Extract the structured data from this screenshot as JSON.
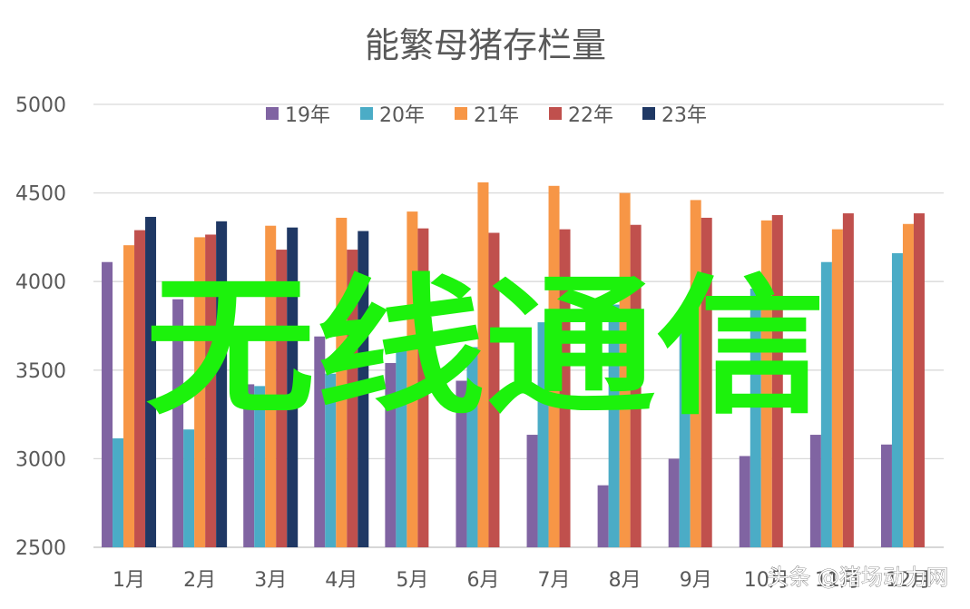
{
  "chart_data": {
    "type": "bar",
    "title": "能繁母猪存栏量",
    "xlabel": "",
    "ylabel": "",
    "ylim": [
      2500,
      5000
    ],
    "yticks": [
      2500,
      3000,
      3500,
      4000,
      4500,
      5000
    ],
    "grid": true,
    "legend_position": "top",
    "categories": [
      "1月",
      "2月",
      "3月",
      "4月",
      "5月",
      "6月",
      "7月",
      "8月",
      "9月",
      "10月",
      "11月",
      "12月"
    ],
    "series": [
      {
        "name": "19年",
        "color": "#8064a2",
        "values": [
          4110,
          3900,
          3420,
          3690,
          3540,
          3440,
          3135,
          2850,
          3000,
          3015,
          3135,
          3080
        ]
      },
      {
        "name": "20年",
        "color": "#4bacc6",
        "values": [
          3115,
          3165,
          3410,
          3480,
          3620,
          3630,
          3770,
          3870,
          3820,
          3960,
          4110,
          4160
        ]
      },
      {
        "name": "21年",
        "color": "#f79646",
        "values": [
          4205,
          4250,
          4315,
          4360,
          4395,
          4560,
          4540,
          4500,
          4460,
          4345,
          4295,
          4325
        ]
      },
      {
        "name": "22年",
        "color": "#c0504d",
        "values": [
          4290,
          4265,
          4180,
          4180,
          4300,
          4275,
          4295,
          4320,
          4360,
          4375,
          4385,
          4385
        ]
      },
      {
        "name": "23年",
        "color": "#1f3864",
        "values": [
          4365,
          4340,
          4305,
          4285,
          null,
          null,
          null,
          null,
          null,
          null,
          null,
          null
        ]
      }
    ]
  },
  "overlay": {
    "text": "无线通信"
  },
  "watermark": {
    "text": "头条 @猪场动力网"
  }
}
